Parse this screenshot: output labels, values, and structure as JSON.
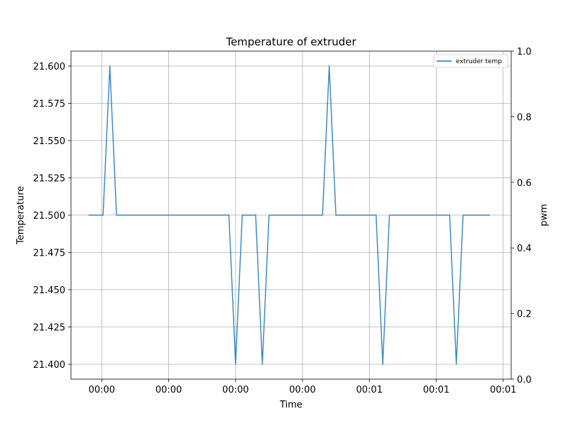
{
  "chart_data": {
    "type": "line",
    "title": "Temperature of extruder",
    "xlabel": "Time",
    "ylabel": "Temperature",
    "y2label": "pwm",
    "grid": true,
    "legend_position": "top-right",
    "ylim": [
      21.39,
      21.61
    ],
    "y2lim": [
      0,
      1
    ],
    "xlim": [
      -4.6,
      61.2
    ],
    "x_ticks": [
      {
        "x": 0,
        "label": "00:00"
      },
      {
        "x": 10,
        "label": "00:00"
      },
      {
        "x": 20,
        "label": "00:00"
      },
      {
        "x": 30,
        "label": "00:00"
      },
      {
        "x": 40,
        "label": "00:01"
      },
      {
        "x": 50,
        "label": "00:01"
      },
      {
        "x": 60,
        "label": "00:01"
      }
    ],
    "y_ticks": [
      {
        "v": 21.4,
        "label": "21.400"
      },
      {
        "v": 21.425,
        "label": "21.425"
      },
      {
        "v": 21.45,
        "label": "21.450"
      },
      {
        "v": 21.475,
        "label": "21.475"
      },
      {
        "v": 21.5,
        "label": "21.500"
      },
      {
        "v": 21.525,
        "label": "21.525"
      },
      {
        "v": 21.55,
        "label": "21.550"
      },
      {
        "v": 21.575,
        "label": "21.575"
      },
      {
        "v": 21.6,
        "label": "21.600"
      }
    ],
    "y2_ticks": [
      {
        "v": 0.0,
        "label": "0.0"
      },
      {
        "v": 0.2,
        "label": "0.2"
      },
      {
        "v": 0.4,
        "label": "0.4"
      },
      {
        "v": 0.6,
        "label": "0.6"
      },
      {
        "v": 0.8,
        "label": "0.8"
      },
      {
        "v": 1.0,
        "label": "1.0"
      }
    ],
    "series": [
      {
        "name": "extruder temp",
        "color": "#1f77b4",
        "x": [
          -2,
          0.2,
          1.2,
          2.2,
          19,
          20,
          21,
          23,
          24,
          25,
          33,
          34,
          35,
          41,
          42,
          43,
          52,
          53,
          54,
          58
        ],
        "y": [
          21.5,
          21.5,
          21.6,
          21.5,
          21.5,
          21.4,
          21.5,
          21.5,
          21.4,
          21.5,
          21.5,
          21.6,
          21.5,
          21.5,
          21.4,
          21.5,
          21.5,
          21.4,
          21.5,
          21.5
        ]
      }
    ]
  }
}
